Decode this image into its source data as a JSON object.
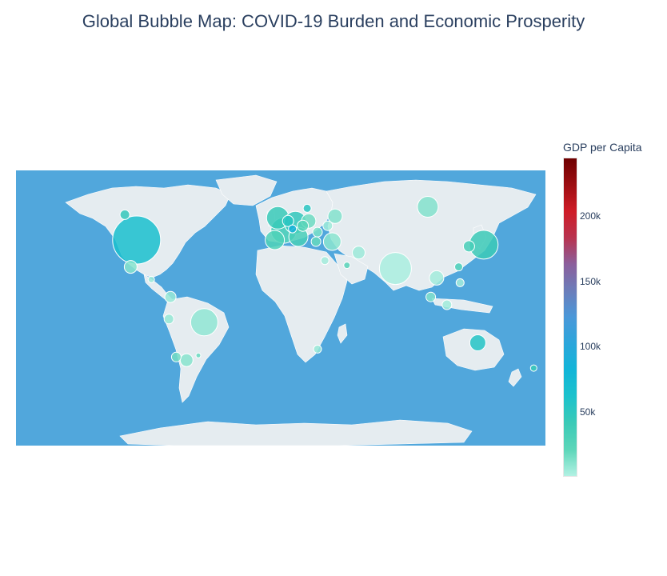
{
  "title": "Global Bubble Map: COVID-19 Burden and Economic Prosperity",
  "colorbar": {
    "title": "GDP per Capita",
    "min": 0,
    "max": 245000,
    "ticks": [
      {
        "value": 50000,
        "label": "50k"
      },
      {
        "value": 100000,
        "label": "100k"
      },
      {
        "value": 150000,
        "label": "150k"
      },
      {
        "value": 200000,
        "label": "200k"
      }
    ],
    "colors": [
      "#b2f1e3",
      "#5cd6b9",
      "#3bcab7",
      "#1cc2cc",
      "#12b5d8",
      "#2ba6db",
      "#4a98d9",
      "#6b7dba",
      "#8b5f9c",
      "#b8334f",
      "#cf1c27",
      "#9d0e12",
      "#6e0000"
    ]
  },
  "map": {
    "ocean_color": "#51a7dc",
    "land_color": "#e5ecf0",
    "projection": "equirectangular"
  },
  "chart_data": {
    "type": "scatter-geo",
    "title": "Global Bubble Map: COVID-19 Burden and Economic Prosperity",
    "color_variable": "GDP per Capita",
    "size_variable": "COVID-19 burden",
    "points": [
      {
        "lon": -98,
        "lat": 40,
        "size": 30,
        "gdp": 65000
      },
      {
        "lon": -102,
        "lat": 23,
        "size": 8,
        "gdp": 10000
      },
      {
        "lon": -88,
        "lat": 15,
        "size": 4,
        "gdp": 5000
      },
      {
        "lon": -106,
        "lat": 56,
        "size": 6,
        "gdp": 45000
      },
      {
        "lon": -75,
        "lat": 4,
        "size": 7,
        "gdp": 6000
      },
      {
        "lon": -76,
        "lat": -10,
        "size": 6,
        "gdp": 7000
      },
      {
        "lon": -52,
        "lat": -12,
        "size": 17,
        "gdp": 8000
      },
      {
        "lon": -64,
        "lat": -36,
        "size": 8,
        "gdp": 10000
      },
      {
        "lon": -71,
        "lat": -34,
        "size": 6,
        "gdp": 15000
      },
      {
        "lon": -56,
        "lat": -33,
        "size": 3,
        "gdp": 17000
      },
      {
        "lon": -2,
        "lat": 54,
        "size": 14,
        "gdp": 42000
      },
      {
        "lon": 2,
        "lat": 46,
        "size": 16,
        "gdp": 40000
      },
      {
        "lon": 10,
        "lat": 51,
        "size": 14,
        "gdp": 46000
      },
      {
        "lon": 12,
        "lat": 42,
        "size": 12,
        "gdp": 32000
      },
      {
        "lon": -4,
        "lat": 40,
        "size": 12,
        "gdp": 28000
      },
      {
        "lon": 19,
        "lat": 52,
        "size": 9,
        "gdp": 16000
      },
      {
        "lon": 5,
        "lat": 52,
        "size": 7,
        "gdp": 52000
      },
      {
        "lon": 15,
        "lat": 49,
        "size": 7,
        "gdp": 23000
      },
      {
        "lon": 25,
        "lat": 45,
        "size": 6,
        "gdp": 13000
      },
      {
        "lon": 35,
        "lat": 39,
        "size": 11,
        "gdp": 9000
      },
      {
        "lon": 37,
        "lat": 55,
        "size": 9,
        "gdp": 11000
      },
      {
        "lon": 32,
        "lat": 49,
        "size": 6,
        "gdp": 4000
      },
      {
        "lon": 100,
        "lat": 61,
        "size": 13,
        "gdp": 11000
      },
      {
        "lon": 78,
        "lat": 22,
        "size": 20,
        "gdp": 2000
      },
      {
        "lon": 53,
        "lat": 32,
        "size": 8,
        "gdp": 5000
      },
      {
        "lon": 30,
        "lat": 27,
        "size": 5,
        "gdp": 3500
      },
      {
        "lon": 45,
        "lat": 24,
        "size": 4,
        "gdp": 23000
      },
      {
        "lon": 138,
        "lat": 37,
        "size": 18,
        "gdp": 40000
      },
      {
        "lon": 128,
        "lat": 36,
        "size": 7,
        "gdp": 32000
      },
      {
        "lon": 121,
        "lat": 23,
        "size": 5,
        "gdp": 33000
      },
      {
        "lon": 106,
        "lat": 16,
        "size": 9,
        "gdp": 3500
      },
      {
        "lon": 122,
        "lat": 13,
        "size": 5,
        "gdp": 3500
      },
      {
        "lon": 102,
        "lat": 4,
        "size": 6,
        "gdp": 11000
      },
      {
        "lon": 113,
        "lat": -1,
        "size": 6,
        "gdp": 4000
      },
      {
        "lon": 134,
        "lat": -25,
        "size": 10,
        "gdp": 55000
      },
      {
        "lon": 172,
        "lat": -41,
        "size": 4,
        "gdp": 42000
      },
      {
        "lon": 25,
        "lat": -29,
        "size": 5,
        "gdp": 6000
      },
      {
        "lon": 24,
        "lat": 39,
        "size": 6,
        "gdp": 18000
      },
      {
        "lon": 8,
        "lat": 47,
        "size": 5,
        "gdp": 87000
      },
      {
        "lon": 18,
        "lat": 60,
        "size": 5,
        "gdp": 52000
      }
    ]
  }
}
